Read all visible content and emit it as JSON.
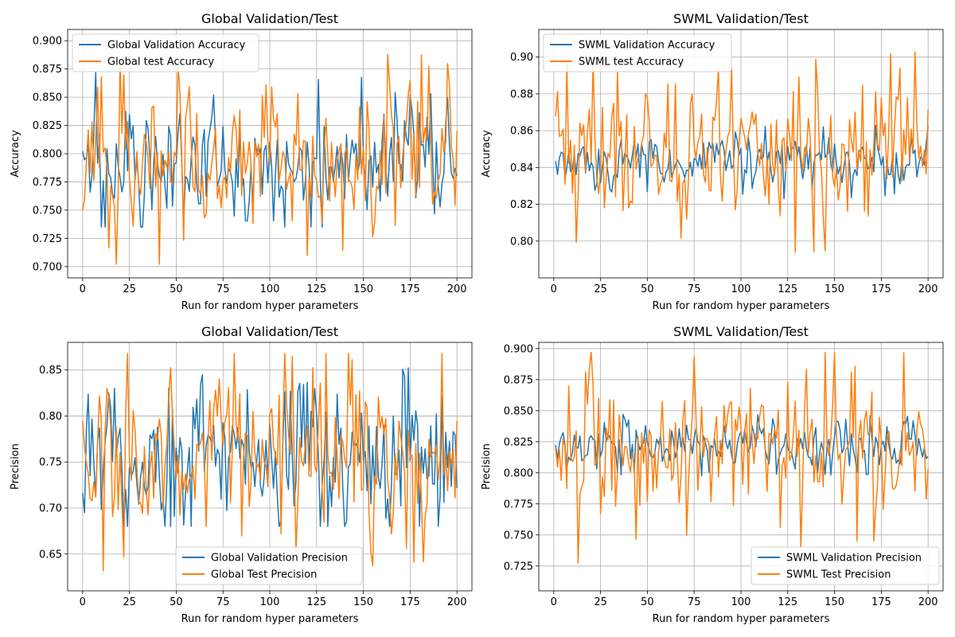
{
  "figure": {
    "layout": "2x2 grid"
  },
  "chart_data": [
    {
      "type": "line",
      "title": "Global Validation/Test",
      "xlabel": "Run for random hyper parameters",
      "ylabel": "Accuracy",
      "xlim": [
        -8,
        208
      ],
      "ylim": [
        0.69,
        0.91
      ],
      "xticks": [
        0,
        25,
        50,
        75,
        100,
        125,
        150,
        175,
        200
      ],
      "xtick_labels": [
        "0",
        "25",
        "50",
        "75",
        "100",
        "125",
        "150",
        "175",
        "200"
      ],
      "yticks": [
        0.7,
        0.725,
        0.75,
        0.775,
        0.8,
        0.825,
        0.85,
        0.875,
        0.9
      ],
      "ytick_labels": [
        "0.700",
        "0.725",
        "0.750",
        "0.775",
        "0.800",
        "0.825",
        "0.850",
        "0.875",
        "0.900"
      ],
      "grid": true,
      "legend_position": "upper-left",
      "x_start": 0,
      "x_step": 1,
      "series": [
        {
          "name": "Global Validation Accuracy",
          "color": "#1f77b4",
          "gen": {
            "seed": 11,
            "mean": 0.795,
            "amp": 0.03,
            "min": 0.735,
            "max": 0.872,
            "n": 201
          }
        },
        {
          "name": "Global test Accuracy",
          "color": "#ff7f0e",
          "gen": {
            "seed": 23,
            "mean": 0.795,
            "amp": 0.04,
            "min": 0.702,
            "max": 0.888,
            "n": 201
          }
        }
      ]
    },
    {
      "type": "line",
      "title": "SWML Validation/Test",
      "xlabel": "Run for random hyper parameters",
      "ylabel": "Accuracy",
      "xlim": [
        -8,
        208
      ],
      "ylim": [
        0.78,
        0.915
      ],
      "xticks": [
        0,
        25,
        50,
        75,
        100,
        125,
        150,
        175,
        200
      ],
      "xtick_labels": [
        "0",
        "25",
        "50",
        "75",
        "100",
        "125",
        "150",
        "175",
        "200"
      ],
      "yticks": [
        0.8,
        0.82,
        0.84,
        0.86,
        0.88,
        0.9
      ],
      "ytick_labels": [
        "0.80",
        "0.82",
        "0.84",
        "0.86",
        "0.88",
        "0.90"
      ],
      "grid": true,
      "legend_position": "upper-left",
      "x_start": 1,
      "x_step": 1,
      "series": [
        {
          "name": "SWML Validation Accuracy",
          "color": "#1f77b4",
          "gen": {
            "seed": 37,
            "mean": 0.843,
            "amp": 0.008,
            "min": 0.823,
            "max": 0.864,
            "n": 200
          }
        },
        {
          "name": "SWML test Accuracy",
          "color": "#ff7f0e",
          "gen": {
            "seed": 41,
            "mean": 0.848,
            "amp": 0.025,
            "min": 0.787,
            "max": 0.908,
            "n": 200
          }
        }
      ]
    },
    {
      "type": "line",
      "title": "Global Validation/Test",
      "xlabel": "Run for random hyper parameters",
      "ylabel": "Precision",
      "xlim": [
        -8,
        208
      ],
      "ylim": [
        0.61,
        0.88
      ],
      "xticks": [
        0,
        25,
        50,
        75,
        100,
        125,
        150,
        175,
        200
      ],
      "xtick_labels": [
        "0",
        "25",
        "50",
        "75",
        "100",
        "125",
        "150",
        "175",
        "200"
      ],
      "yticks": [
        0.65,
        0.7,
        0.75,
        0.8,
        0.85
      ],
      "ytick_labels": [
        "0.65",
        "0.70",
        "0.75",
        "0.80",
        "0.85"
      ],
      "grid": true,
      "legend_position": "lower-center",
      "x_start": 0,
      "x_step": 1,
      "series": [
        {
          "name": "Global Validation Precision",
          "color": "#1f77b4",
          "gen": {
            "seed": 53,
            "mean": 0.752,
            "amp": 0.04,
            "min": 0.68,
            "max": 0.858,
            "n": 201
          }
        },
        {
          "name": "Global Test Precision",
          "color": "#ff7f0e",
          "gen": {
            "seed": 67,
            "mean": 0.752,
            "amp": 0.055,
            "min": 0.623,
            "max": 0.868,
            "n": 201
          }
        }
      ]
    },
    {
      "type": "line",
      "title": "SWML Validation/Test",
      "xlabel": "Run for random hyper parameters",
      "ylabel": "Precision",
      "xlim": [
        -8,
        208
      ],
      "ylim": [
        0.705,
        0.905
      ],
      "xticks": [
        0,
        25,
        50,
        75,
        100,
        125,
        150,
        175,
        200
      ],
      "xtick_labels": [
        "0",
        "25",
        "50",
        "75",
        "100",
        "125",
        "150",
        "175",
        "200"
      ],
      "yticks": [
        0.725,
        0.75,
        0.775,
        0.8,
        0.825,
        0.85,
        0.875,
        0.9
      ],
      "ytick_labels": [
        "0.725",
        "0.750",
        "0.775",
        "0.800",
        "0.825",
        "0.850",
        "0.875",
        "0.900"
      ],
      "grid": true,
      "legend_position": "lower-right",
      "x_start": 1,
      "x_step": 1,
      "series": [
        {
          "name": "SWML Validation Precision",
          "color": "#1f77b4",
          "gen": {
            "seed": 71,
            "mean": 0.822,
            "amp": 0.01,
            "min": 0.795,
            "max": 0.853,
            "n": 200
          }
        },
        {
          "name": "SWML Test Precision",
          "color": "#ff7f0e",
          "gen": {
            "seed": 83,
            "mean": 0.818,
            "amp": 0.035,
            "min": 0.713,
            "max": 0.897,
            "n": 200
          }
        }
      ]
    }
  ]
}
